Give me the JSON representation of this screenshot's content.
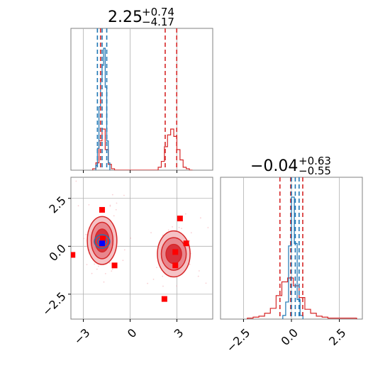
{
  "chart_data": {
    "type": "corner",
    "colors": {
      "model_a": "#d62728",
      "model_b": "#1f77b4",
      "truth_marker": "#ff0000",
      "point_marker": "#0000ff",
      "grid": "#b0b0b0"
    },
    "grid": true,
    "panels": [
      {
        "id": "param1-marginal",
        "type": "histogram",
        "title": {
          "median": "2.25",
          "plus": "+0.74",
          "minus": "−4.17"
        },
        "xlim": [
          -3.8,
          5.3
        ],
        "red_hist": {
          "bin_edges": [
            -2.4,
            -2.2,
            -2.0,
            -1.8,
            -1.6,
            -1.4,
            -1.2,
            -1.0,
            1.8,
            2.0,
            2.2,
            2.4,
            2.6,
            2.8,
            3.0,
            3.2,
            3.4,
            3.6,
            3.8,
            4.0
          ],
          "counts": [
            1,
            5,
            20,
            28,
            14,
            4,
            1,
            0,
            2,
            6,
            16,
            24,
            28,
            23,
            14,
            7,
            2,
            1,
            0
          ]
        },
        "blue_hist": {
          "bin_edges": [
            -2.2,
            -2.1,
            -2.0,
            -1.9,
            -1.8,
            -1.7,
            -1.6,
            -1.5,
            -1.4,
            -1.3
          ],
          "counts": [
            4,
            18,
            52,
            74,
            86,
            100,
            68,
            24,
            6
          ]
        },
        "red_quantiles": [
          -1.9,
          2.25,
          2.99
        ],
        "blue_quantiles": [
          -2.1,
          -1.8,
          -1.5
        ]
      },
      {
        "id": "param2-marginal",
        "type": "histogram",
        "title": {
          "median": "−0.04",
          "plus": "+0.63",
          "minus": "−0.55"
        },
        "xlim": [
          -3.7,
          3.7
        ],
        "xticks": [
          "−2.5",
          "0.0",
          "2.5"
        ],
        "xtick_values": [
          -2.5,
          0.0,
          2.5
        ],
        "red_hist": {
          "bin_edges": [
            -2.3,
            -2.0,
            -1.7,
            -1.4,
            -1.1,
            -0.8,
            -0.5,
            -0.2,
            0.1,
            0.4,
            0.7,
            1.0,
            1.3,
            1.6,
            1.9,
            2.2,
            2.5,
            2.8,
            3.1,
            3.4
          ],
          "counts": [
            1,
            2,
            3,
            6,
            11,
            24,
            38,
            42,
            34,
            22,
            10,
            6,
            3,
            2,
            1,
            1,
            1,
            1,
            1
          ]
        },
        "blue_hist": {
          "bin_edges": [
            -0.45,
            -0.3,
            -0.15,
            0.0,
            0.15,
            0.3,
            0.45,
            0.6
          ],
          "counts": [
            3,
            14,
            60,
            100,
            62,
            16,
            3
          ]
        },
        "red_quantiles": [
          -0.6,
          -0.04,
          0.59
        ],
        "blue_quantiles": [
          0.0,
          0.2,
          0.4
        ]
      },
      {
        "id": "joint-param1-param2",
        "type": "contour_scatter",
        "xlim": [
          -3.8,
          5.3
        ],
        "ylim": [
          -3.8,
          3.6
        ],
        "xticks": [
          "−3",
          "0",
          "3"
        ],
        "xtick_values": [
          -3,
          0,
          3
        ],
        "yticks": [
          "−2.5",
          "0.0",
          "2.5"
        ],
        "ytick_values": [
          -2.5,
          0.0,
          2.5
        ],
        "red_blobs": [
          {
            "center": [
              -1.8,
              0.3
            ],
            "radii": [
              [
                0.95,
                1.25
              ],
              [
                0.7,
                0.95
              ],
              [
                0.45,
                0.6
              ]
            ]
          },
          {
            "center": [
              2.8,
              -0.4
            ],
            "radii": [
              [
                1.05,
                1.2
              ],
              [
                0.8,
                0.85
              ],
              [
                0.5,
                0.5
              ]
            ]
          }
        ],
        "blue_blob": {
          "center": [
            -1.8,
            0.25
          ],
          "radii": [
            [
              0.5,
              0.35
            ],
            [
              0.3,
              0.2
            ]
          ]
        },
        "red_markers": [
          [
            -1.8,
            1.9
          ],
          [
            -3.7,
            -0.45
          ],
          [
            -1.0,
            -1.0
          ],
          [
            3.2,
            1.45
          ],
          [
            3.6,
            0.15
          ],
          [
            2.9,
            -0.3
          ],
          [
            2.9,
            -1.0
          ],
          [
            2.2,
            -2.75
          ],
          [
            -1.75,
            0.4
          ]
        ],
        "blue_markers": [
          [
            -1.8,
            0.15
          ]
        ]
      }
    ]
  }
}
